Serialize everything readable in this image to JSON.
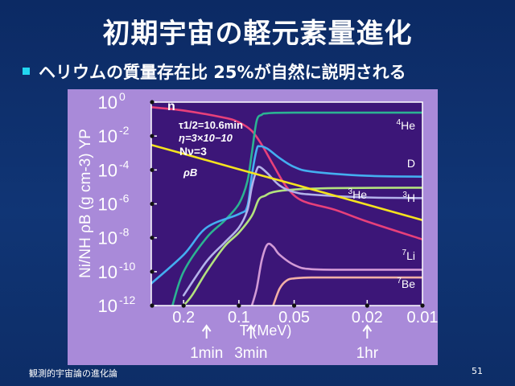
{
  "slide": {
    "title": "初期宇宙の軽元素量進化",
    "bullet": "ヘリウムの質量存在比 25%が自然に説明される",
    "footer_left": "観測的宇宙論の進化論",
    "page_number": "51"
  },
  "colors": {
    "background": "#0e2f6a",
    "figure_panel": "#a98ad9",
    "plot_area": "#3c1678",
    "bullet": "#22d7f0"
  },
  "chart_data": {
    "type": "line",
    "title": "",
    "xlabel": "T (MeV)",
    "ylabel": "Ni/NH ρB (g cm-3) YP",
    "x_scale": "log",
    "y_scale": "log",
    "xlim": [
      0.3,
      0.01
    ],
    "ylim": [
      1e-12,
      1
    ],
    "x_ticks": [
      {
        "value": 0.2,
        "label": "0.2"
      },
      {
        "value": 0.1,
        "label": "0.1"
      },
      {
        "value": 0.05,
        "label": "0.05"
      },
      {
        "value": 0.02,
        "label": "0.02"
      },
      {
        "value": 0.01,
        "label": "0.01"
      }
    ],
    "y_ticks": [
      {
        "value": 1,
        "base": "10",
        "exp": "0"
      },
      {
        "value": 0.01,
        "base": "10",
        "exp": "-2"
      },
      {
        "value": 0.0001,
        "base": "10",
        "exp": "-4"
      },
      {
        "value": 1e-06,
        "base": "10",
        "exp": "-6"
      },
      {
        "value": 1e-08,
        "base": "10",
        "exp": "-8"
      },
      {
        "value": 1e-10,
        "base": "10",
        "exp": "-10"
      },
      {
        "value": 1e-12,
        "base": "10",
        "exp": "-12"
      }
    ],
    "time_markers": [
      {
        "T": 0.15,
        "label": "1min"
      },
      {
        "T": 0.086,
        "label": "3min"
      },
      {
        "T": 0.02,
        "label": "1hr"
      }
    ],
    "annotations": {
      "tau": "τ1/2=10.6min",
      "eta": "η=3×10−10",
      "nnu": "Nν=3",
      "rhoB": "ρB"
    },
    "series": [
      {
        "name": "n",
        "color": "#e8407a",
        "points": [
          [
            0.3,
            0.5
          ],
          [
            0.2,
            0.32
          ],
          [
            0.12,
            0.12
          ],
          [
            0.1,
            0.065
          ],
          [
            0.085,
            0.02
          ],
          [
            0.075,
            0.003
          ],
          [
            0.065,
            0.0002
          ],
          [
            0.055,
            1e-05
          ],
          [
            0.045,
            1.5e-06
          ],
          [
            0.03,
            4.5e-07
          ],
          [
            0.02,
            9e-08
          ],
          [
            0.01,
            8e-09
          ]
        ]
      },
      {
        "name": "4He",
        "color": "#2bb392",
        "points": [
          [
            0.23,
            1e-12
          ],
          [
            0.2,
            1e-10
          ],
          [
            0.15,
            1e-08
          ],
          [
            0.12,
            1e-07
          ],
          [
            0.1,
            1e-06
          ],
          [
            0.09,
            2e-05
          ],
          [
            0.085,
            0.001
          ],
          [
            0.08,
            0.08
          ],
          [
            0.075,
            0.18
          ],
          [
            0.07,
            0.22
          ],
          [
            0.05,
            0.24
          ],
          [
            0.01,
            0.24
          ]
        ]
      },
      {
        "name": "D",
        "color": "#44aef0",
        "points": [
          [
            0.3,
            2e-11
          ],
          [
            0.2,
            1e-09
          ],
          [
            0.15,
            4e-08
          ],
          [
            0.1,
            2.5e-07
          ],
          [
            0.09,
            7e-07
          ],
          [
            0.085,
            5e-05
          ],
          [
            0.08,
            0.0016
          ],
          [
            0.077,
            0.0025
          ],
          [
            0.07,
            0.0018
          ],
          [
            0.06,
            0.0005
          ],
          [
            0.05,
            0.00015
          ],
          [
            0.04,
            8e-05
          ],
          [
            0.02,
            4.5e-05
          ],
          [
            0.01,
            4e-05
          ]
        ]
      },
      {
        "name": "3He",
        "color": "#b3e27e",
        "points": [
          [
            0.2,
            1e-12
          ],
          [
            0.18,
            4e-12
          ],
          [
            0.15,
            1e-10
          ],
          [
            0.12,
            3e-09
          ],
          [
            0.1,
            2e-08
          ],
          [
            0.085,
            2e-07
          ],
          [
            0.078,
            1.8e-06
          ],
          [
            0.072,
            3e-06
          ],
          [
            0.065,
            5e-06
          ],
          [
            0.05,
            7e-06
          ],
          [
            0.03,
            8.5e-06
          ],
          [
            0.01,
            9e-06
          ]
        ]
      },
      {
        "name": "3H",
        "color": "#b3b2ea",
        "points": [
          [
            0.2,
            4e-12
          ],
          [
            0.15,
            4e-10
          ],
          [
            0.12,
            5e-09
          ],
          [
            0.1,
            4e-08
          ],
          [
            0.09,
            4e-07
          ],
          [
            0.085,
            1e-05
          ],
          [
            0.08,
            0.0001
          ],
          [
            0.077,
            0.00015
          ],
          [
            0.07,
            6.5e-05
          ],
          [
            0.06,
            1.2e-05
          ],
          [
            0.05,
            5e-06
          ],
          [
            0.04,
            3.5e-06
          ],
          [
            0.02,
            2.4e-06
          ],
          [
            0.01,
            2.2e-06
          ]
        ]
      },
      {
        "name": "7Li",
        "color": "#d29ad6",
        "points": [
          [
            0.085,
            1e-12
          ],
          [
            0.08,
            1e-11
          ],
          [
            0.075,
            5e-10
          ],
          [
            0.07,
            4e-09
          ],
          [
            0.065,
            3e-09
          ],
          [
            0.06,
            1e-09
          ],
          [
            0.05,
            2.5e-10
          ],
          [
            0.04,
            1.4e-10
          ],
          [
            0.02,
            1.3e-10
          ],
          [
            0.01,
            1.3e-10
          ]
        ]
      },
      {
        "name": "7Be",
        "color": "#f2b0a6",
        "points": [
          [
            0.065,
            1e-12
          ],
          [
            0.06,
            1e-11
          ],
          [
            0.055,
            3e-11
          ],
          [
            0.05,
            4e-11
          ],
          [
            0.04,
            4.5e-11
          ],
          [
            0.02,
            4.5e-11
          ],
          [
            0.01,
            4.5e-11
          ]
        ]
      },
      {
        "name": "",
        "color": "#f5e31e",
        "points": [
          [
            0.3,
            0.003
          ],
          [
            0.2,
            0.0009
          ],
          [
            0.1,
            0.00011
          ],
          [
            0.05,
            1.4e-05
          ],
          [
            0.02,
            9e-07
          ],
          [
            0.01,
            1.1e-07
          ]
        ]
      }
    ],
    "series_labels": [
      {
        "series": "n",
        "base": "n",
        "pre": "",
        "sub": ""
      },
      {
        "series": "4He",
        "base": "He",
        "pre": "4",
        "sub": ""
      },
      {
        "series": "D",
        "base": "D",
        "pre": "",
        "sub": ""
      },
      {
        "series": "3He",
        "base": "He",
        "pre": "3",
        "sub": ""
      },
      {
        "series": "3H",
        "base": "H",
        "pre": "3",
        "sub": ""
      },
      {
        "series": "7Li",
        "base": "Li",
        "pre": "7",
        "sub": ""
      },
      {
        "series": "7Be",
        "base": "Be",
        "pre": "7",
        "sub": ""
      }
    ]
  }
}
